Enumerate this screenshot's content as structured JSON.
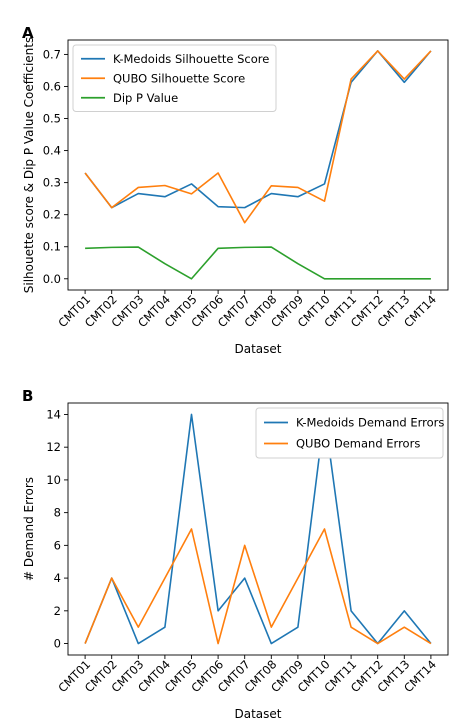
{
  "chart_data": [
    {
      "type": "line",
      "panel_label": "A",
      "categories": [
        "CMT01",
        "CMT02",
        "CMT03",
        "CMT04",
        "CMT05",
        "CMT06",
        "CMT07",
        "CMT08",
        "CMT09",
        "CMT10",
        "CMT11",
        "CMT12",
        "CMT13",
        "CMT14"
      ],
      "series": [
        {
          "name": "K-Medoids Silhouette Score",
          "color": "#1f77b4",
          "values": [
            0.33,
            0.222,
            0.266,
            0.256,
            0.296,
            0.225,
            0.222,
            0.266,
            0.256,
            0.296,
            0.613,
            0.711,
            0.613,
            0.711
          ]
        },
        {
          "name": "QUBO Silhouette Score",
          "color": "#ff7f0e",
          "values": [
            0.33,
            0.222,
            0.285,
            0.291,
            0.265,
            0.33,
            0.175,
            0.29,
            0.285,
            0.242,
            0.623,
            0.711,
            0.623,
            0.711
          ]
        },
        {
          "name": "Dip P Value",
          "color": "#2ca02c",
          "values": [
            0.095,
            0.098,
            0.099,
            0.047,
            0.0,
            0.095,
            0.098,
            0.099,
            0.047,
            0.0,
            0.0,
            0.0,
            0.0,
            0.0
          ]
        }
      ],
      "xlabel": "Dataset",
      "ylabel": "Silhouette score & Dip P Value Coefficients",
      "ylim": [
        -0.035,
        0.745
      ],
      "yticks": [
        0.0,
        0.1,
        0.2,
        0.3,
        0.4,
        0.5,
        0.6,
        0.7
      ],
      "ytick_labels": [
        "0.0",
        "0.1",
        "0.2",
        "0.3",
        "0.4",
        "0.5",
        "0.6",
        "0.7"
      ],
      "grid": false,
      "legend_position": "top-left"
    },
    {
      "type": "line",
      "panel_label": "B",
      "categories": [
        "CMT01",
        "CMT02",
        "CMT03",
        "CMT04",
        "CMT05",
        "CMT06",
        "CMT07",
        "CMT08",
        "CMT09",
        "CMT10",
        "CMT11",
        "CMT12",
        "CMT13",
        "CMT14"
      ],
      "series": [
        {
          "name": "K-Medoids Demand Errors",
          "color": "#1f77b4",
          "values": [
            0,
            4,
            0,
            1,
            14,
            2,
            4,
            0,
            1,
            14,
            2,
            0,
            2,
            0
          ]
        },
        {
          "name": "QUBO Demand Errors",
          "color": "#ff7f0e",
          "values": [
            0,
            4,
            1,
            4,
            7,
            0,
            6,
            1,
            4,
            7,
            1,
            0,
            1,
            0
          ]
        }
      ],
      "xlabel": "Dataset",
      "ylabel": "# Demand Errors",
      "ylim": [
        -0.7,
        14.7
      ],
      "yticks": [
        0,
        2,
        4,
        6,
        8,
        10,
        12,
        14
      ],
      "ytick_labels": [
        "0",
        "2",
        "4",
        "6",
        "8",
        "10",
        "12",
        "14"
      ],
      "grid": false,
      "legend_position": "top-right"
    }
  ]
}
